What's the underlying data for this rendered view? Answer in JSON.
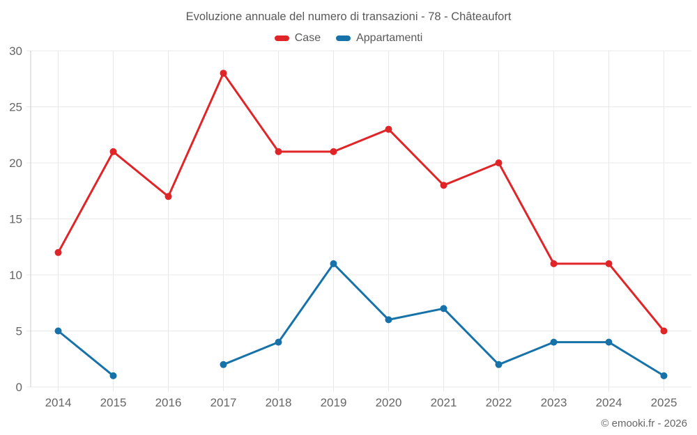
{
  "page": {
    "title": "Evoluzione annuale del numero di transazioni - 78 - Châteaufort",
    "copyright": "© emooki.fr - 2026"
  },
  "colors": {
    "case_red": "#e02528",
    "appartamenti_blue": "#1672a8",
    "gridline": "#e8e8e8",
    "axis_line": "#cccccc",
    "tick_text": "#666666",
    "title_text": "#595959"
  },
  "chart_data": {
    "type": "line",
    "title": "Evoluzione annuale del numero di transazioni - 78 - Châteaufort",
    "x": [
      "2014",
      "2015",
      "2016",
      "2017",
      "2018",
      "2019",
      "2020",
      "2021",
      "2022",
      "2023",
      "2024",
      "2025"
    ],
    "series": [
      {
        "name": "Case",
        "color": "#e02528",
        "values": [
          12,
          21,
          17,
          28,
          21,
          21,
          23,
          18,
          20,
          11,
          11,
          5
        ]
      },
      {
        "name": "Appartamenti",
        "color": "#1672a8",
        "values": [
          5,
          1,
          null,
          2,
          4,
          11,
          6,
          7,
          2,
          4,
          4,
          1
        ]
      }
    ],
    "xlabel": "",
    "ylabel": "",
    "ylim": [
      0,
      30
    ],
    "yticks": [
      0,
      5,
      10,
      15,
      20,
      25,
      30
    ],
    "grid": true,
    "legend_position": "top",
    "annotation": "© emooki.fr - 2026"
  }
}
